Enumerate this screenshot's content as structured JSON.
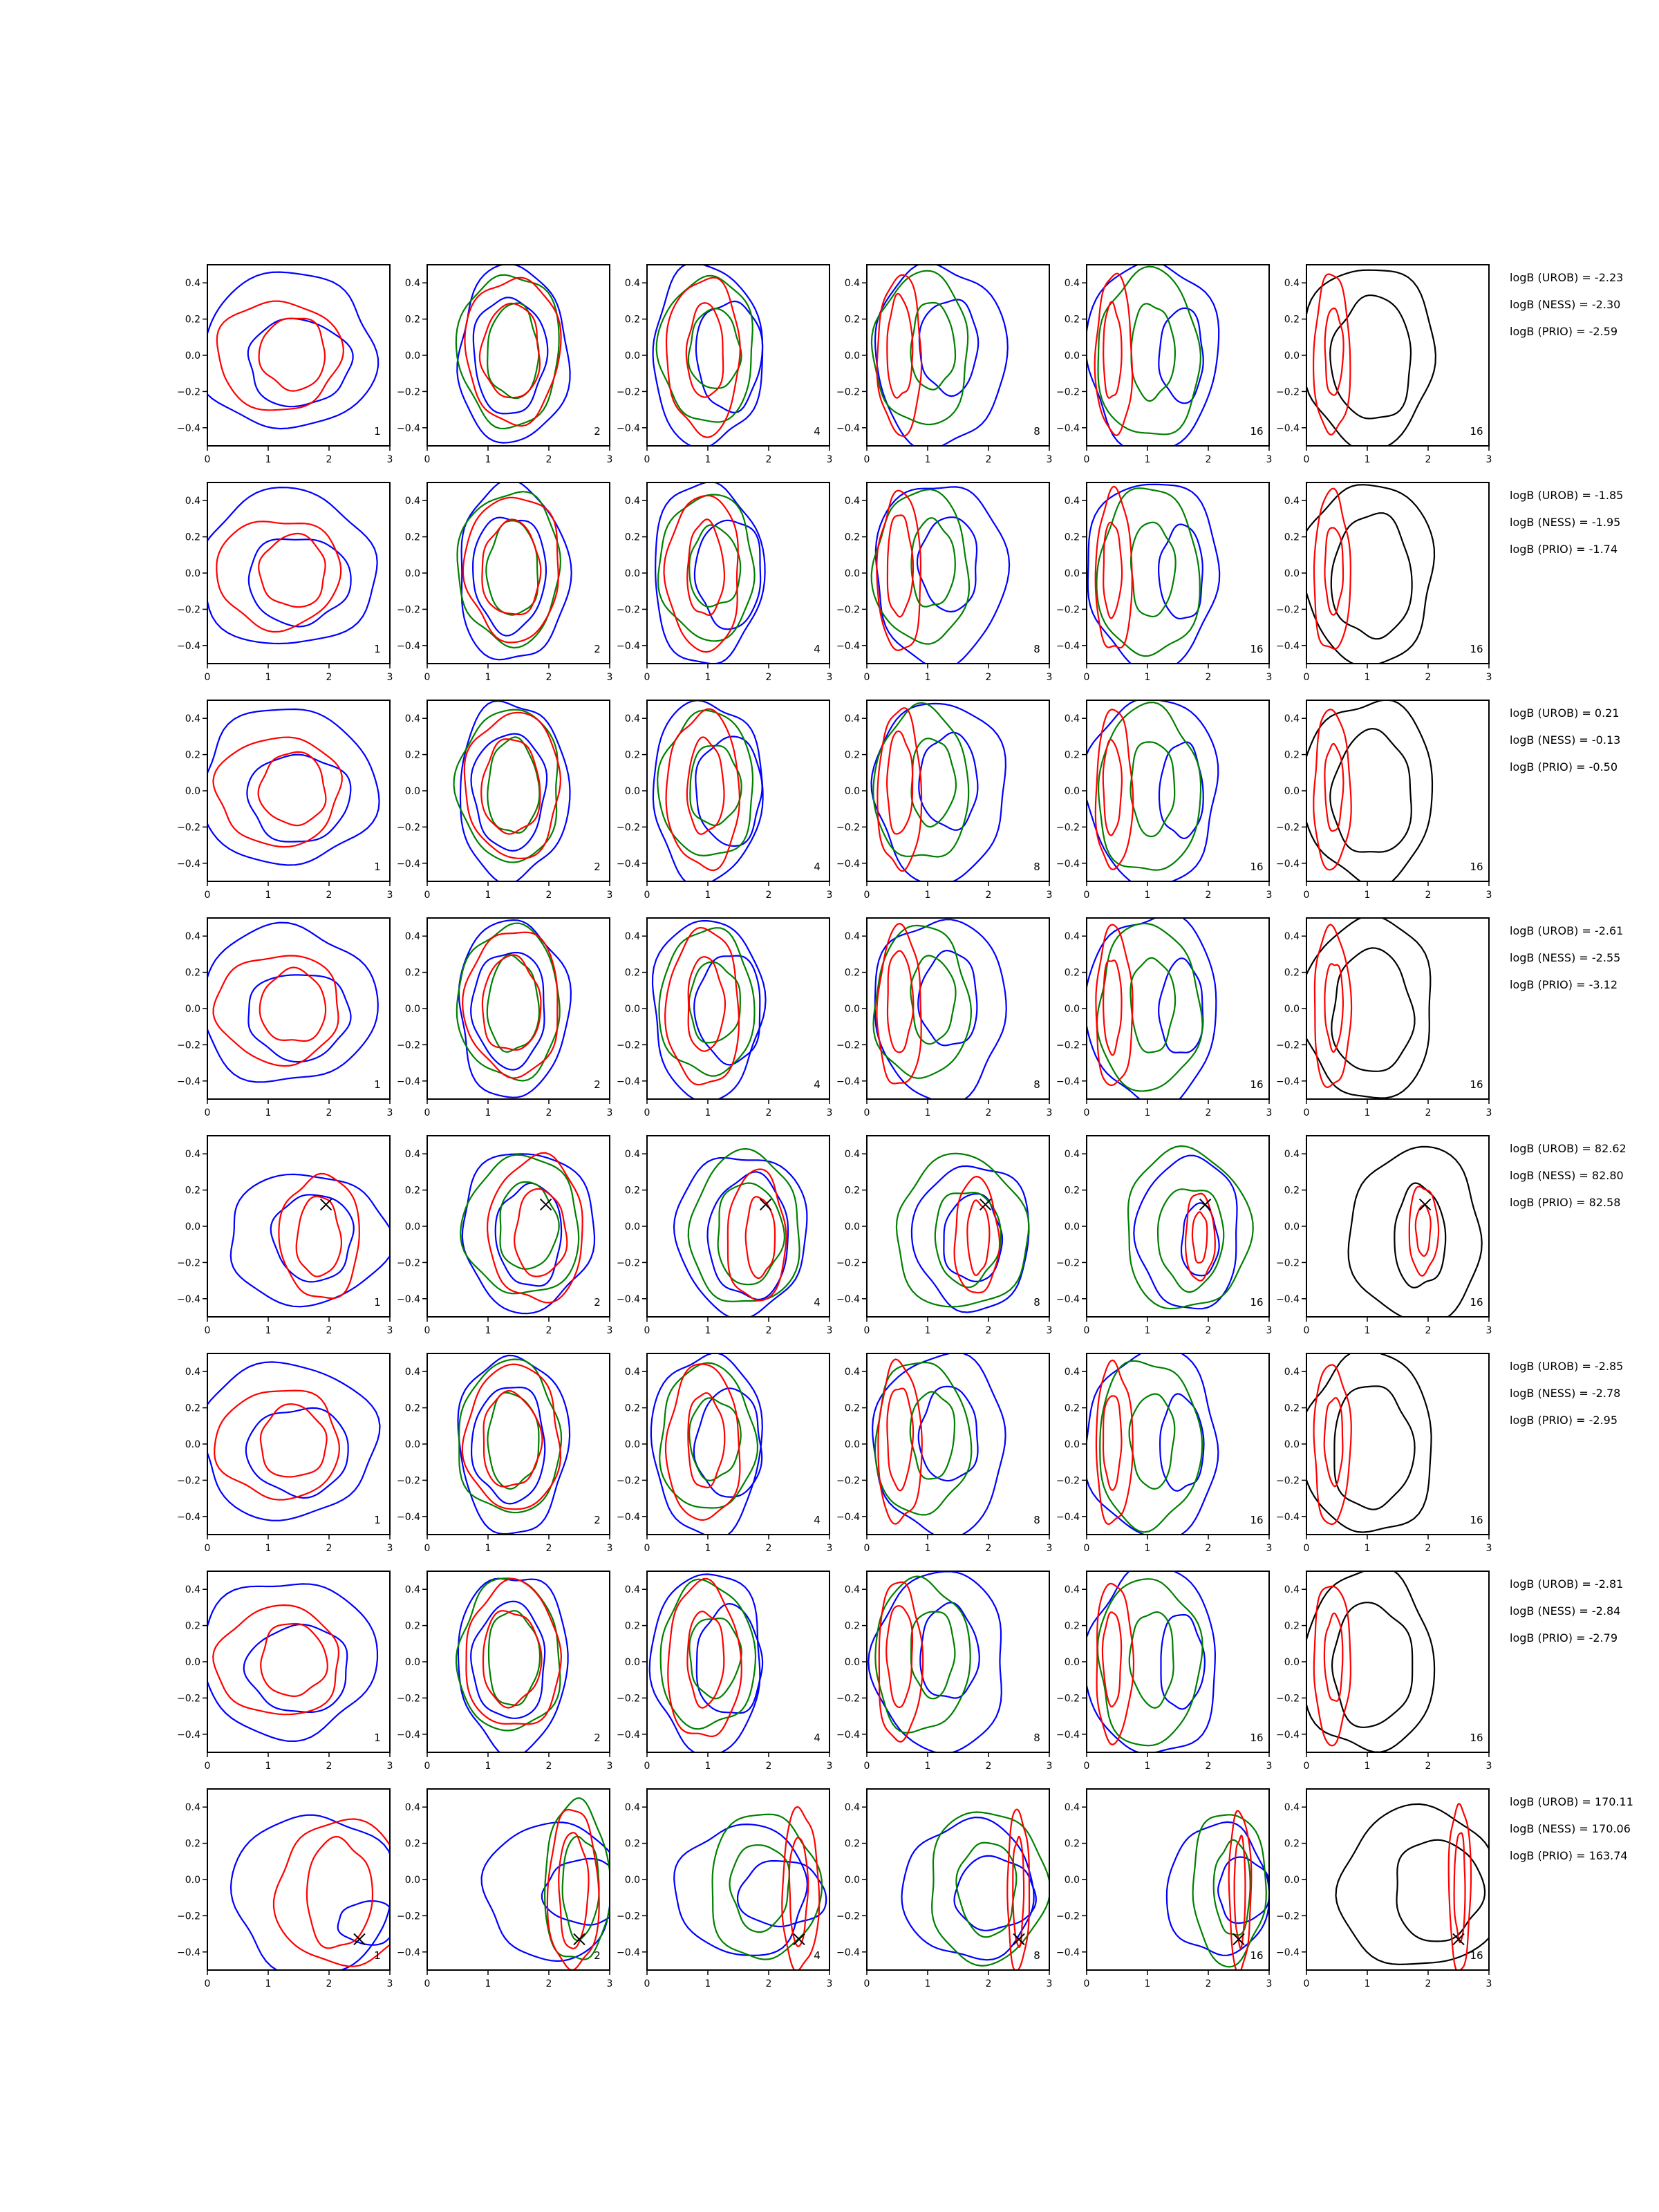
{
  "figure": {
    "columns": [
      {
        "label": "1"
      },
      {
        "label": "2"
      },
      {
        "label": "4"
      },
      {
        "label": "8"
      },
      {
        "label": "16"
      },
      {
        "label": "16"
      }
    ],
    "colors": {
      "blue": "#0000ff",
      "green": "#008000",
      "red": "#ff0000",
      "black": "#000000"
    },
    "x_ticks": [
      0,
      1,
      2,
      3
    ],
    "y_ticks": [
      "0.4",
      "0.2",
      "0.0",
      "−0.2",
      "−0.4"
    ],
    "xlim": [
      0,
      3
    ],
    "ylim": [
      -0.5,
      0.5
    ]
  },
  "chart_data": [
    {
      "type": "contour",
      "row": 1,
      "logB": [
        "logB (UROB) = -2.23",
        "logB (NESS) = -2.30",
        "logB (PRIO) = -2.59"
      ],
      "marker": null
    },
    {
      "type": "contour",
      "row": 2,
      "logB": [
        "logB (UROB) = -1.85",
        "logB (NESS) = -1.95",
        "logB (PRIO) = -1.74"
      ],
      "marker": null
    },
    {
      "type": "contour",
      "row": 3,
      "logB": [
        "logB (UROB) = 0.21",
        "logB (NESS) = -0.13",
        "logB (PRIO) = -0.50"
      ],
      "marker": null
    },
    {
      "type": "contour",
      "row": 4,
      "logB": [
        "logB (UROB) = -2.61",
        "logB (NESS) = -2.55",
        "logB (PRIO) = -3.12"
      ],
      "marker": null
    },
    {
      "type": "contour",
      "row": 5,
      "logB": [
        "logB (UROB) = 82.62",
        "logB (NESS) = 82.80",
        "logB (PRIO) = 82.58"
      ],
      "marker": {
        "x": 1.95,
        "y": 0.12
      }
    },
    {
      "type": "contour",
      "row": 6,
      "logB": [
        "logB (UROB) = -2.85",
        "logB (NESS) = -2.78",
        "logB (PRIO) = -2.95"
      ],
      "marker": null
    },
    {
      "type": "contour",
      "row": 7,
      "logB": [
        "logB (UROB) = -2.81",
        "logB (NESS) = -2.84",
        "logB (PRIO) = -2.79"
      ],
      "marker": null
    },
    {
      "type": "contour",
      "row": 8,
      "logB": [
        "logB (UROB) = 170.11",
        "logB (NESS) = 170.06",
        "logB (PRIO) = 163.74"
      ],
      "marker": {
        "x": 2.5,
        "y": -0.33
      }
    }
  ]
}
